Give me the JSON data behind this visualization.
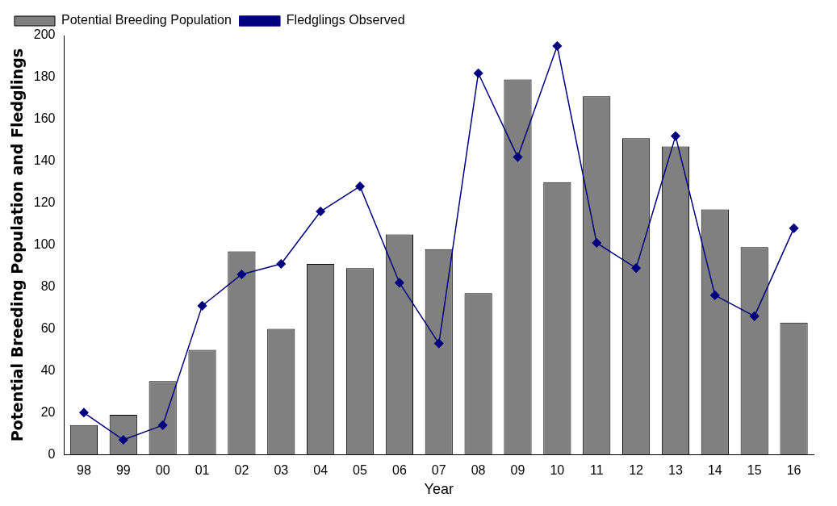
{
  "chart_data": {
    "type": "bar",
    "xlabel": "Year",
    "ylabel": "Potential Breeding Population and Fledglings",
    "categories": [
      "98",
      "99",
      "00",
      "01",
      "02",
      "03",
      "04",
      "05",
      "06",
      "07",
      "08",
      "09",
      "10",
      "11",
      "12",
      "13",
      "14",
      "15",
      "16"
    ],
    "series": [
      {
        "name": "Potential Breeding Population",
        "color": "#808080",
        "values": [
          14,
          19,
          35,
          50,
          97,
          60,
          91,
          89,
          105,
          98,
          77,
          179,
          130,
          171,
          151,
          147,
          117,
          99,
          63
        ]
      },
      {
        "name": "Fledglings Observed",
        "type": "line",
        "color": "#000080",
        "marker": "diamond",
        "values": [
          20,
          7,
          14,
          71,
          86,
          91,
          116,
          128,
          82,
          53,
          182,
          142,
          195,
          101,
          89,
          152,
          76,
          66,
          108
        ]
      }
    ],
    "ylim": [
      0,
      200
    ],
    "yticks": [
      0,
      20,
      40,
      60,
      80,
      100,
      120,
      140,
      160,
      180,
      200
    ],
    "grid": false,
    "legend": "top left"
  }
}
